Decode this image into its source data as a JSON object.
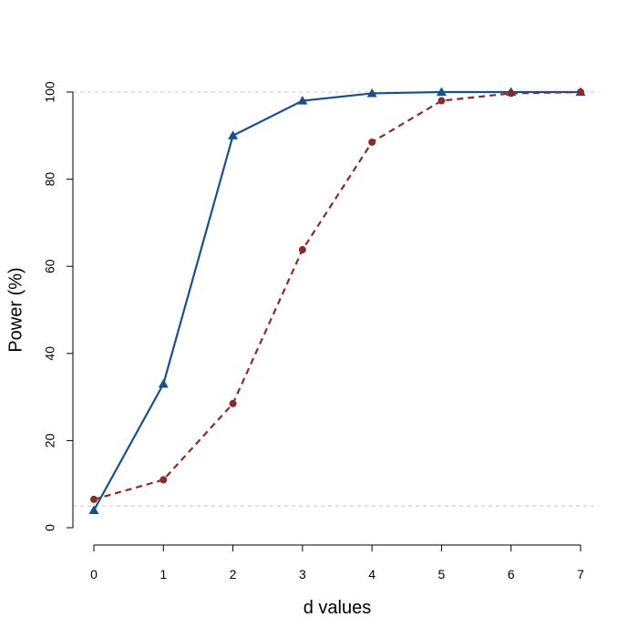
{
  "chart_data": {
    "type": "line",
    "title": "",
    "xlabel": "d values",
    "ylabel": "Power (%)",
    "x": [
      0,
      1,
      2,
      3,
      4,
      5,
      6,
      7
    ],
    "xlim": [
      0,
      7
    ],
    "ylim": [
      0,
      100
    ],
    "xticks": [
      "0",
      "1",
      "2",
      "3",
      "4",
      "5",
      "6",
      "7"
    ],
    "yticks": [
      "0",
      "20",
      "40",
      "60",
      "80",
      "100"
    ],
    "reference_lines": [
      5,
      100
    ],
    "grid": false,
    "series": [
      {
        "color": "#1a4f8a",
        "line_style": "solid",
        "marker": "triangle",
        "values": [
          4,
          33,
          90,
          98,
          99.7,
          100,
          100,
          100
        ]
      },
      {
        "color": "#8b2a2a",
        "line_style": "dashed",
        "marker": "circle",
        "values": [
          6.5,
          11,
          28.5,
          63.8,
          88.5,
          98,
          99.7,
          100
        ]
      }
    ]
  }
}
